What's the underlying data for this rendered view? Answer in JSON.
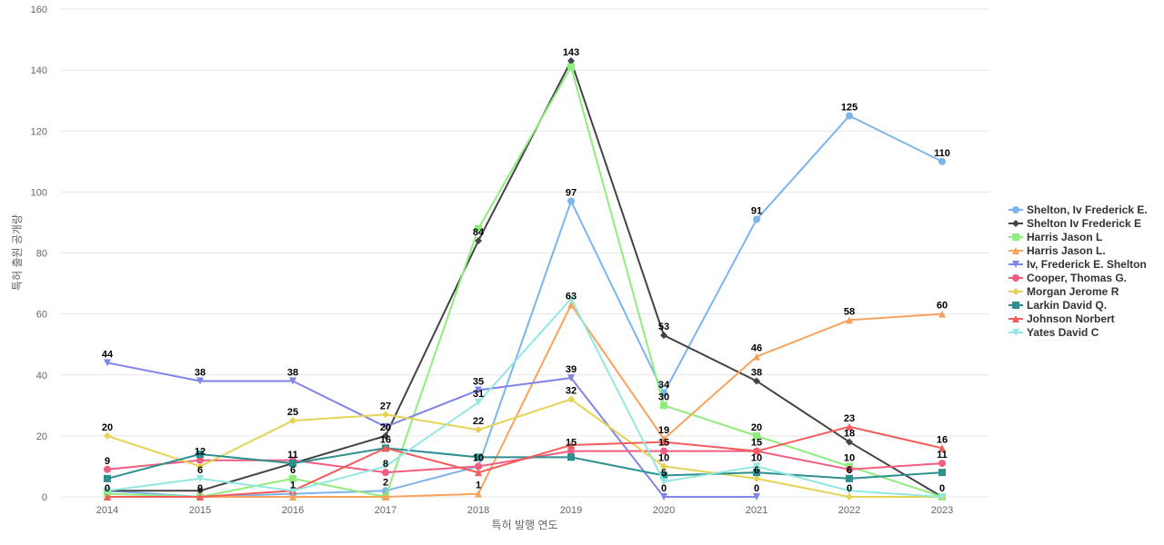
{
  "chart_data": {
    "type": "line",
    "title": "",
    "xlabel": "특허 발행 연도",
    "ylabel": "특허 출원 공개량",
    "ylim": [
      0,
      160
    ],
    "yticks": [
      0,
      20,
      40,
      60,
      80,
      100,
      120,
      140,
      160
    ],
    "grid": true,
    "legend_position": "right",
    "x": [
      "2014",
      "2015",
      "2016",
      "2017",
      "2018",
      "2019",
      "2020",
      "2021",
      "2022",
      "2023"
    ],
    "series": [
      {
        "name": "Shelton, Iv Frederick E.",
        "color": "#7cb5ec",
        "marker": "circle",
        "values": [
          2,
          0,
          1,
          2,
          10,
          97,
          34,
          91,
          125,
          110
        ]
      },
      {
        "name": "Shelton Iv Frederick E",
        "color": "#434348",
        "marker": "diamond",
        "values": [
          2,
          2,
          11,
          20,
          84,
          143,
          53,
          38,
          18,
          0
        ]
      },
      {
        "name": "Harris Jason L",
        "color": "#90ed7d",
        "marker": "square",
        "values": [
          1,
          0,
          6,
          0,
          88,
          141,
          30,
          20,
          10,
          0
        ]
      },
      {
        "name": "Harris Jason L.",
        "color": "#f7a35c",
        "marker": "triangle",
        "values": [
          0,
          0,
          0,
          0,
          1,
          63,
          19,
          46,
          58,
          60
        ]
      },
      {
        "name": "Iv, Frederick E. Shelton",
        "color": "#8085e9",
        "marker": "triangle-down",
        "values": [
          44,
          38,
          38,
          23,
          35,
          39,
          0,
          0,
          null,
          null
        ]
      },
      {
        "name": "Cooper, Thomas G.",
        "color": "#f15c80",
        "marker": "circle",
        "values": [
          9,
          12,
          12,
          8,
          10,
          15,
          15,
          15,
          9,
          11
        ]
      },
      {
        "name": "Morgan Jerome R",
        "color": "#e4d354",
        "marker": "diamond",
        "values": [
          20,
          10,
          25,
          27,
          22,
          32,
          10,
          6,
          0,
          0
        ]
      },
      {
        "name": "Larkin David Q.",
        "color": "#2b908f",
        "marker": "square",
        "values": [
          6,
          14,
          11,
          16,
          13,
          13,
          7,
          8,
          6,
          8
        ]
      },
      {
        "name": "Johnson Norbert",
        "color": "#f45b5b",
        "marker": "triangle",
        "values": [
          0,
          0,
          2,
          16,
          8,
          17,
          18,
          15,
          23,
          16
        ]
      },
      {
        "name": "Yates David C",
        "color": "#91e8e1",
        "marker": "triangle-down",
        "values": [
          2,
          6,
          2,
          10,
          31,
          65,
          5,
          10,
          2,
          0
        ]
      }
    ],
    "data_labels": [
      {
        "x": "2014",
        "text": "44",
        "value": 44
      },
      {
        "x": "2014",
        "text": "20",
        "value": 20
      },
      {
        "x": "2014",
        "text": "9",
        "value": 9
      },
      {
        "x": "2014",
        "text": "0",
        "value": 0
      },
      {
        "x": "2015",
        "text": "38",
        "value": 38
      },
      {
        "x": "2015",
        "text": "12",
        "value": 12
      },
      {
        "x": "2015",
        "text": "6",
        "value": 6
      },
      {
        "x": "2015",
        "text": "0",
        "value": 0
      },
      {
        "x": "2016",
        "text": "38",
        "value": 38
      },
      {
        "x": "2016",
        "text": "25",
        "value": 25
      },
      {
        "x": "2016",
        "text": "11",
        "value": 11
      },
      {
        "x": "2016",
        "text": "6",
        "value": 6
      },
      {
        "x": "2016",
        "text": "1",
        "value": 1
      },
      {
        "x": "2017",
        "text": "27",
        "value": 27
      },
      {
        "x": "2017",
        "text": "20",
        "value": 20
      },
      {
        "x": "2017",
        "text": "16",
        "value": 16
      },
      {
        "x": "2017",
        "text": "8",
        "value": 8
      },
      {
        "x": "2017",
        "text": "2",
        "value": 2
      },
      {
        "x": "2018",
        "text": "84",
        "value": 84
      },
      {
        "x": "2018",
        "text": "35",
        "value": 35
      },
      {
        "x": "2018",
        "text": "31",
        "value": 31
      },
      {
        "x": "2018",
        "text": "22",
        "value": 22
      },
      {
        "x": "2018",
        "text": "10",
        "value": 10
      },
      {
        "x": "2018",
        "text": "1",
        "value": 1
      },
      {
        "x": "2019",
        "text": "143",
        "value": 143
      },
      {
        "x": "2019",
        "text": "97",
        "value": 97
      },
      {
        "x": "2019",
        "text": "63",
        "value": 63
      },
      {
        "x": "2019",
        "text": "39",
        "value": 39
      },
      {
        "x": "2019",
        "text": "32",
        "value": 32
      },
      {
        "x": "2019",
        "text": "15",
        "value": 15
      },
      {
        "x": "2020",
        "text": "53",
        "value": 53
      },
      {
        "x": "2020",
        "text": "34",
        "value": 34
      },
      {
        "x": "2020",
        "text": "30",
        "value": 30
      },
      {
        "x": "2020",
        "text": "19",
        "value": 19
      },
      {
        "x": "2020",
        "text": "15",
        "value": 15
      },
      {
        "x": "2020",
        "text": "10",
        "value": 10
      },
      {
        "x": "2020",
        "text": "5",
        "value": 5
      },
      {
        "x": "2020",
        "text": "0",
        "value": 0
      },
      {
        "x": "2021",
        "text": "91",
        "value": 91
      },
      {
        "x": "2021",
        "text": "46",
        "value": 46
      },
      {
        "x": "2021",
        "text": "38",
        "value": 38
      },
      {
        "x": "2021",
        "text": "20",
        "value": 20
      },
      {
        "x": "2021",
        "text": "15",
        "value": 15
      },
      {
        "x": "2021",
        "text": "10",
        "value": 10
      },
      {
        "x": "2021",
        "text": "6",
        "value": 6
      },
      {
        "x": "2021",
        "text": "0",
        "value": 0
      },
      {
        "x": "2022",
        "text": "125",
        "value": 125
      },
      {
        "x": "2022",
        "text": "58",
        "value": 58
      },
      {
        "x": "2022",
        "text": "23",
        "value": 23
      },
      {
        "x": "2022",
        "text": "18",
        "value": 18
      },
      {
        "x": "2022",
        "text": "10",
        "value": 10
      },
      {
        "x": "2022",
        "text": "6",
        "value": 6
      },
      {
        "x": "2022",
        "text": "0",
        "value": 0
      },
      {
        "x": "2023",
        "text": "110",
        "value": 110
      },
      {
        "x": "2023",
        "text": "60",
        "value": 60
      },
      {
        "x": "2023",
        "text": "16",
        "value": 16
      },
      {
        "x": "2023",
        "text": "11",
        "value": 11
      },
      {
        "x": "2023",
        "text": "0",
        "value": 0
      }
    ]
  }
}
